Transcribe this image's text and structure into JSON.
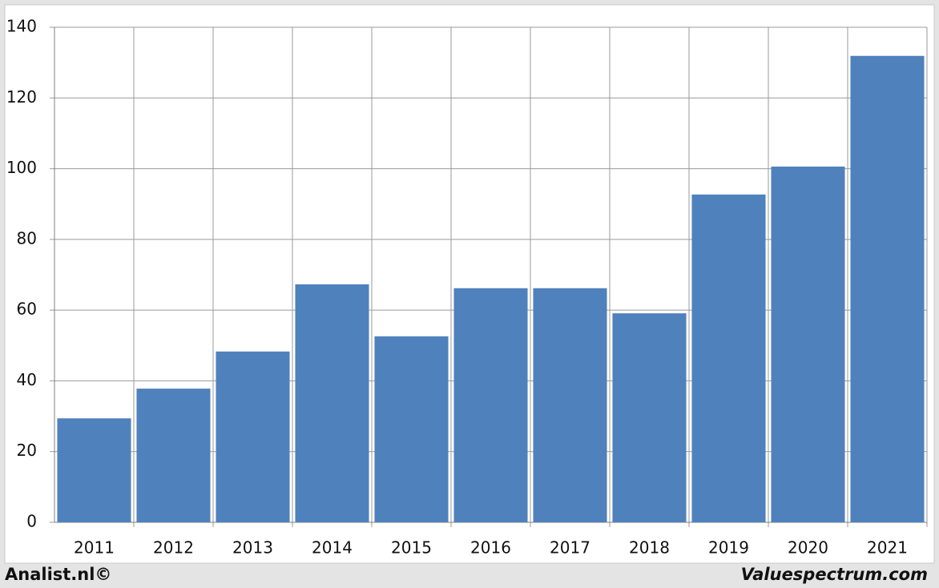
{
  "chart_data": {
    "type": "bar",
    "categories": [
      "2011",
      "2012",
      "2013",
      "2014",
      "2015",
      "2016",
      "2017",
      "2018",
      "2019",
      "2020",
      "2021"
    ],
    "values": [
      29.4,
      37.8,
      48.3,
      67.3,
      52.6,
      66.2,
      66.2,
      59.1,
      92.7,
      100.6,
      131.9
    ],
    "color": "#4f81bd",
    "ylim": [
      0,
      140
    ],
    "yticks": [
      0,
      20,
      40,
      60,
      80,
      100,
      120,
      140
    ],
    "grid": true
  },
  "footer": {
    "left": "Analist.nl©",
    "right": "Valuespectrum.com"
  }
}
